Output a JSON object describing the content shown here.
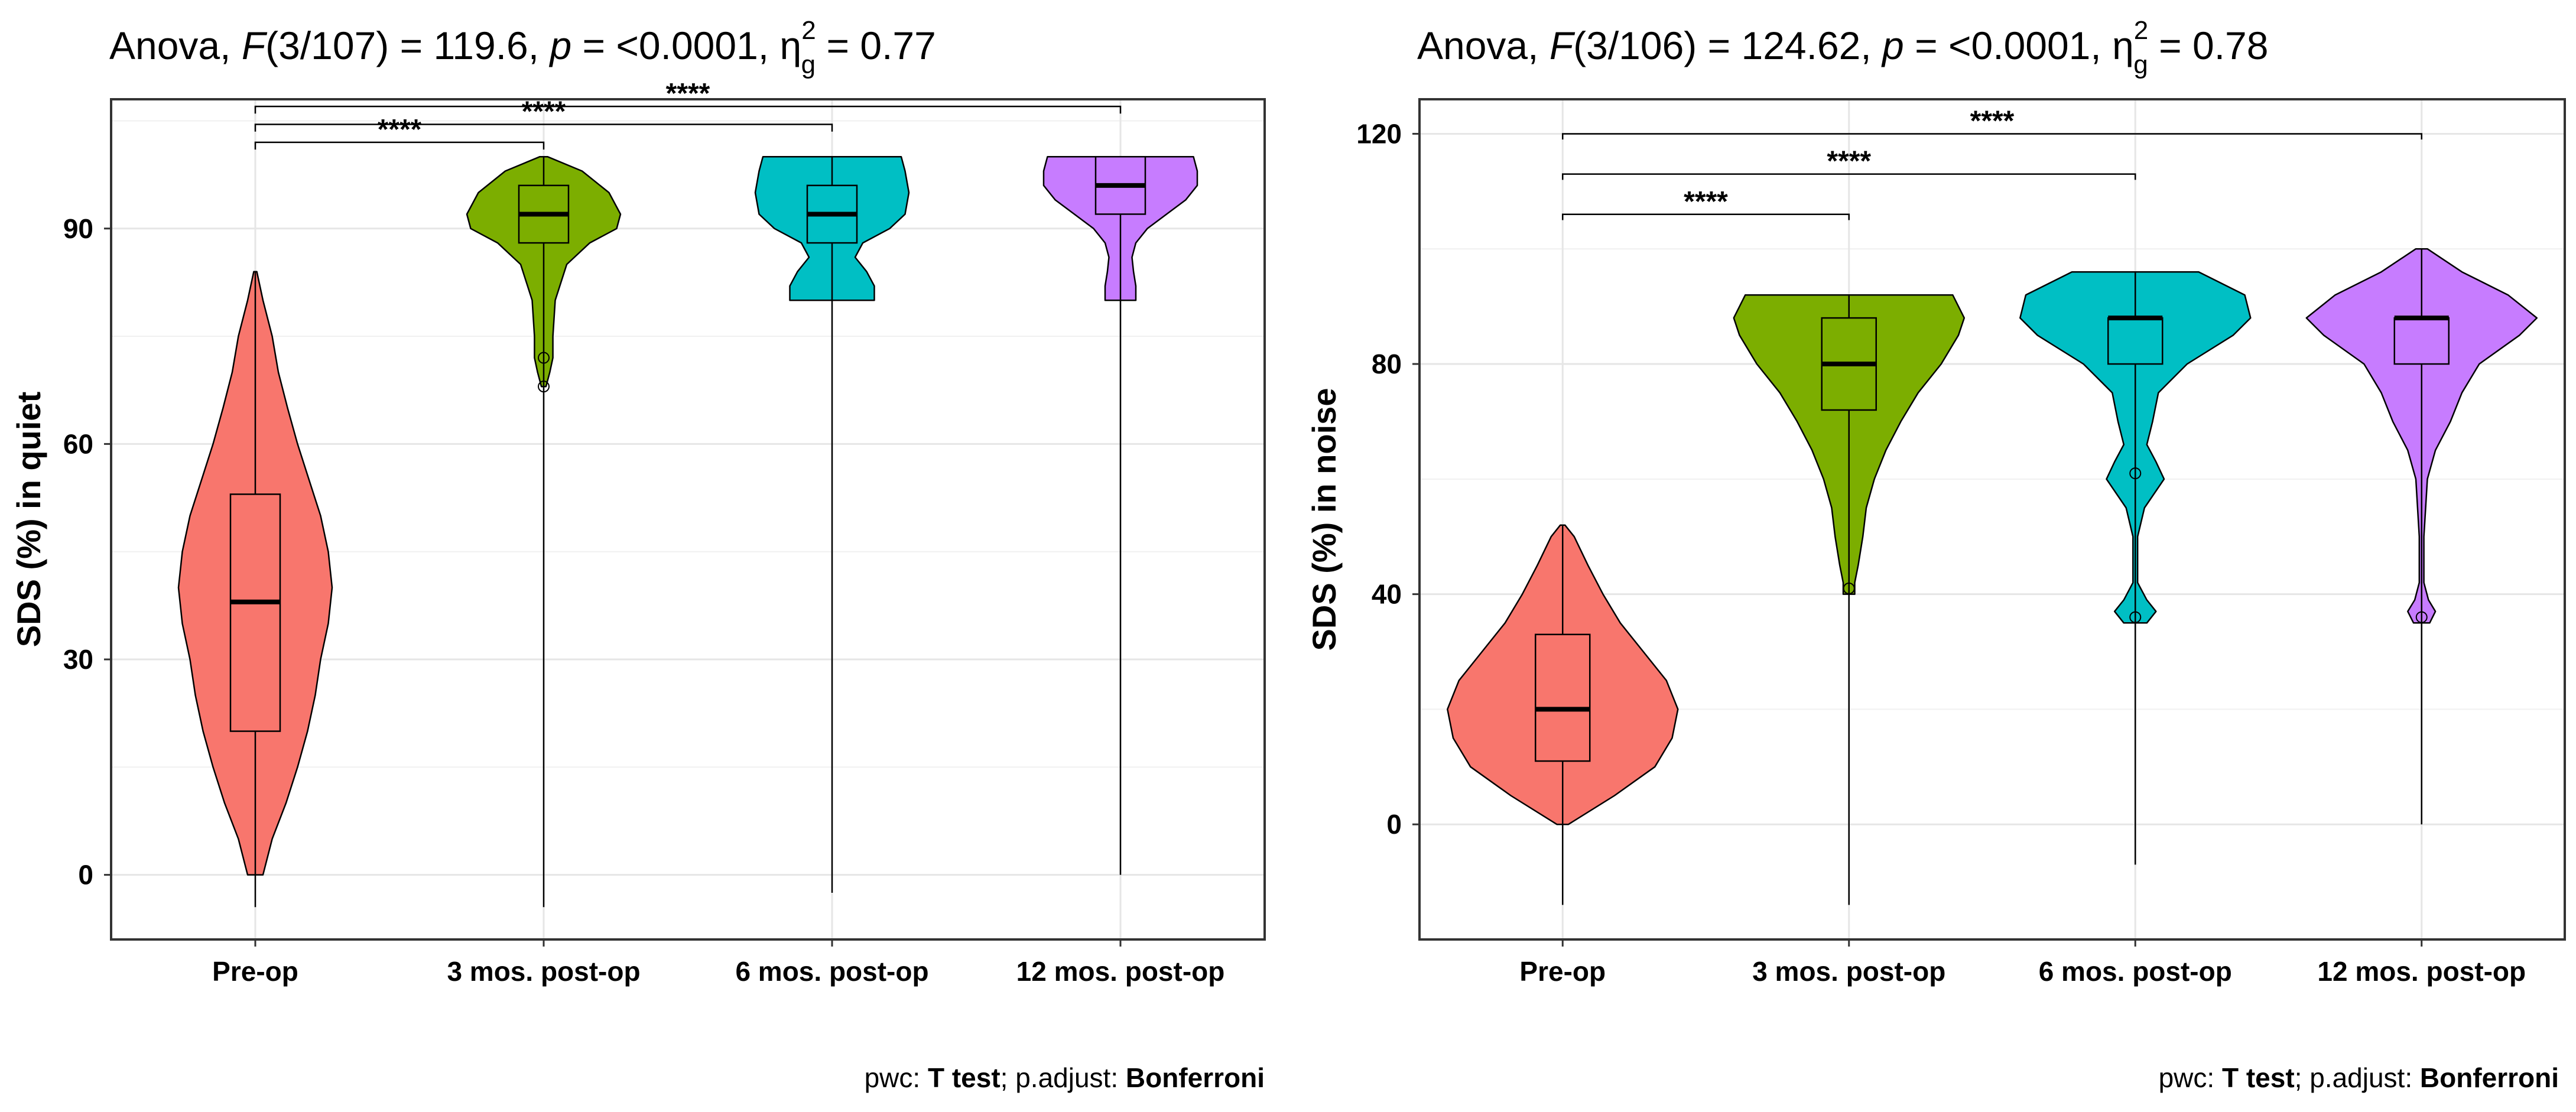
{
  "chart_data": [
    {
      "type": "violin",
      "title": {
        "prefix": "Anova, ",
        "f_label": "F",
        "f_value": "(3/107) = 119.6, ",
        "p_label": "p",
        "p_value": " = <0.0001, ",
        "eta": "η",
        "eta_sup": "2",
        "eta_sub": "g",
        "eta_value": " = 0.77"
      },
      "ylabel": "SDS (%) in quiet",
      "xlabel": "",
      "categories": [
        "Pre-op",
        "3 mos. post-op",
        "6 mos. post-op",
        "12 mos. post-op"
      ],
      "ylim": [
        -9,
        108
      ],
      "yticks": [
        0,
        30,
        60,
        90
      ],
      "grid": true,
      "colors": [
        "#F8766D",
        "#7CAE00",
        "#00BFC4",
        "#C77CFF"
      ],
      "groups": [
        {
          "violin_min": 0,
          "violin_max": 84,
          "density": [
            [
              0,
              0.1
            ],
            [
              5,
              0.22
            ],
            [
              10,
              0.4
            ],
            [
              15,
              0.55
            ],
            [
              20,
              0.68
            ],
            [
              25,
              0.78
            ],
            [
              30,
              0.85
            ],
            [
              35,
              0.95
            ],
            [
              40,
              1.0
            ],
            [
              45,
              0.95
            ],
            [
              50,
              0.85
            ],
            [
              55,
              0.7
            ],
            [
              60,
              0.55
            ],
            [
              65,
              0.42
            ],
            [
              70,
              0.3
            ],
            [
              75,
              0.22
            ],
            [
              80,
              0.1
            ],
            [
              84,
              0.02
            ]
          ],
          "box": {
            "q1": 20,
            "median": 38,
            "q3": 53
          },
          "whisker": [
            -4.5,
            84
          ],
          "outliers": []
        },
        {
          "violin_min": 68,
          "violin_max": 100,
          "density": [
            [
              68,
              0.03
            ],
            [
              70,
              0.08
            ],
            [
              72,
              0.12
            ],
            [
              75,
              0.12
            ],
            [
              80,
              0.15
            ],
            [
              85,
              0.3
            ],
            [
              88,
              0.6
            ],
            [
              90,
              0.95
            ],
            [
              92,
              1.0
            ],
            [
              95,
              0.85
            ],
            [
              98,
              0.5
            ],
            [
              100,
              0.05
            ]
          ],
          "box": {
            "q1": 88,
            "median": 92,
            "q3": 96
          },
          "whisker": [
            -4.5,
            100
          ],
          "outliers": [
            72,
            68
          ]
        },
        {
          "violin_min": 80,
          "violin_max": 100,
          "density": [
            [
              80,
              0.55
            ],
            [
              82,
              0.55
            ],
            [
              84,
              0.45
            ],
            [
              86,
              0.3
            ],
            [
              88,
              0.4
            ],
            [
              90,
              0.75
            ],
            [
              92,
              0.95
            ],
            [
              95,
              1.0
            ],
            [
              98,
              0.95
            ],
            [
              100,
              0.9
            ]
          ],
          "box": {
            "q1": 88,
            "median": 92,
            "q3": 96
          },
          "whisker": [
            -2.5,
            100
          ],
          "outliers": []
        },
        {
          "violin_min": 80,
          "violin_max": 100,
          "density": [
            [
              80,
              0.2
            ],
            [
              82,
              0.2
            ],
            [
              84,
              0.17
            ],
            [
              86,
              0.15
            ],
            [
              88,
              0.2
            ],
            [
              90,
              0.35
            ],
            [
              92,
              0.6
            ],
            [
              94,
              0.85
            ],
            [
              96,
              1.0
            ],
            [
              98,
              1.0
            ],
            [
              100,
              0.95
            ]
          ],
          "box": {
            "q1": 92,
            "median": 96,
            "q3": 100
          },
          "whisker": [
            0,
            100
          ],
          "outliers": []
        }
      ],
      "comparisons": [
        {
          "from": "Pre-op",
          "to": "3 mos. post-op",
          "label": "****",
          "bracket_y": 102,
          "drop_y": 101
        },
        {
          "from": "Pre-op",
          "to": "6 mos. post-op",
          "label": "****",
          "bracket_y": 104.5,
          "drop_y": 103.5
        },
        {
          "from": "Pre-op",
          "to": "12 mos. post-op",
          "label": "****",
          "bracket_y": 107,
          "drop_y": 106
        }
      ],
      "caption": {
        "prefix": "pwc: ",
        "test": "T test",
        "mid": "; p.adjust: ",
        "adjust": "Bonferroni"
      }
    },
    {
      "type": "violin",
      "title": {
        "prefix": "Anova, ",
        "f_label": "F",
        "f_value": "(3/106) = 124.62, ",
        "p_label": "p",
        "p_value": " = <0.0001, ",
        "eta": "η",
        "eta_sup": "2",
        "eta_sub": "g",
        "eta_value": " = 0.78"
      },
      "ylabel": "SDS (%) in noise",
      "xlabel": "",
      "categories": [
        "Pre-op",
        "3 mos. post-op",
        "6 mos. post-op",
        "12 mos. post-op"
      ],
      "ylim": [
        -20,
        126
      ],
      "yticks": [
        0,
        40,
        80,
        120
      ],
      "grid": true,
      "colors": [
        "#F8766D",
        "#7CAE00",
        "#00BFC4",
        "#C77CFF"
      ],
      "groups": [
        {
          "violin_min": 0,
          "violin_max": 52,
          "density": [
            [
              0,
              0.05
            ],
            [
              5,
              0.45
            ],
            [
              10,
              0.8
            ],
            [
              15,
              0.95
            ],
            [
              20,
              1.0
            ],
            [
              25,
              0.9
            ],
            [
              30,
              0.7
            ],
            [
              35,
              0.5
            ],
            [
              40,
              0.35
            ],
            [
              45,
              0.22
            ],
            [
              50,
              0.1
            ],
            [
              52,
              0.02
            ]
          ],
          "box": {
            "q1": 11,
            "median": 20,
            "q3": 33
          },
          "whisker": [
            -14,
            52
          ],
          "outliers": []
        },
        {
          "violin_min": 40,
          "violin_max": 92,
          "density": [
            [
              40,
              0.05
            ],
            [
              42,
              0.05
            ],
            [
              45,
              0.08
            ],
            [
              50,
              0.12
            ],
            [
              55,
              0.15
            ],
            [
              60,
              0.22
            ],
            [
              65,
              0.32
            ],
            [
              70,
              0.45
            ],
            [
              75,
              0.6
            ],
            [
              80,
              0.8
            ],
            [
              85,
              0.95
            ],
            [
              88,
              1.0
            ],
            [
              92,
              0.9
            ]
          ],
          "box": {
            "q1": 72,
            "median": 80,
            "q3": 88
          },
          "whisker": [
            -14,
            92
          ],
          "outliers": [
            41
          ]
        },
        {
          "violin_min": 35,
          "violin_max": 96,
          "density": [
            [
              35,
              0.1
            ],
            [
              37,
              0.18
            ],
            [
              39,
              0.1
            ],
            [
              42,
              0.02
            ],
            [
              50,
              0.02
            ],
            [
              55,
              0.08
            ],
            [
              60,
              0.25
            ],
            [
              63,
              0.18
            ],
            [
              66,
              0.1
            ],
            [
              70,
              0.15
            ],
            [
              75,
              0.2
            ],
            [
              80,
              0.45
            ],
            [
              85,
              0.85
            ],
            [
              88,
              1.0
            ],
            [
              92,
              0.95
            ],
            [
              96,
              0.55
            ]
          ],
          "box": {
            "q1": 80,
            "median": 88,
            "q3": 88
          },
          "whisker": [
            -7,
            96
          ],
          "outliers": [
            61,
            36
          ]
        },
        {
          "violin_min": 35,
          "violin_max": 100,
          "density": [
            [
              35,
              0.07
            ],
            [
              37,
              0.12
            ],
            [
              39,
              0.06
            ],
            [
              42,
              0.02
            ],
            [
              50,
              0.02
            ],
            [
              60,
              0.05
            ],
            [
              65,
              0.12
            ],
            [
              70,
              0.25
            ],
            [
              75,
              0.35
            ],
            [
              80,
              0.5
            ],
            [
              85,
              0.85
            ],
            [
              88,
              1.0
            ],
            [
              92,
              0.75
            ],
            [
              96,
              0.35
            ],
            [
              100,
              0.05
            ]
          ],
          "box": {
            "q1": 80,
            "median": 88,
            "q3": 88
          },
          "whisker": [
            0,
            100
          ],
          "outliers": [
            36
          ]
        }
      ],
      "comparisons": [
        {
          "from": "Pre-op",
          "to": "3 mos. post-op",
          "label": "****",
          "bracket_y": 106,
          "drop_y": 105
        },
        {
          "from": "Pre-op",
          "to": "6 mos. post-op",
          "label": "****",
          "bracket_y": 113,
          "drop_y": 112
        },
        {
          "from": "Pre-op",
          "to": "12 mos. post-op",
          "label": "****",
          "bracket_y": 120,
          "drop_y": 119
        }
      ],
      "caption": {
        "prefix": "pwc: ",
        "test": "T test",
        "mid": "; p.adjust: ",
        "adjust": "Bonferroni"
      }
    }
  ]
}
